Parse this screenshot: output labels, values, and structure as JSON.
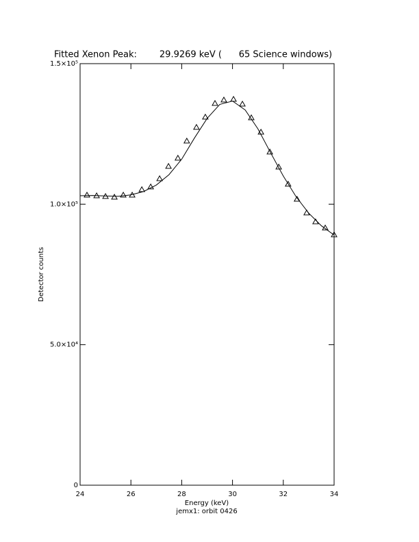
{
  "chart_data": {
    "type": "scatter",
    "title": "Fitted Xenon Peak:        29.9269 keV (      65 Science windows)",
    "x_label": "Energy (keV)",
    "subtitle": "jemx1: orbit 0426",
    "y_label": "Detector counts",
    "xlim": [
      24,
      34
    ],
    "xticks": [
      24,
      26,
      28,
      30,
      32,
      34
    ],
    "ylim": [
      0,
      150000
    ],
    "yticks": [
      {
        "value": 0,
        "label": "0"
      },
      {
        "value": 50000,
        "label": "5.0×10⁴"
      },
      {
        "value": 100000,
        "label": "1.0×10⁵"
      },
      {
        "value": 150000,
        "label": "1.5×10⁵"
      }
    ],
    "color": "#000000",
    "series": [
      {
        "marker": "triangle",
        "x": [
          24.27,
          24.65,
          25.0,
          25.35,
          25.7,
          26.05,
          26.43,
          26.78,
          27.13,
          27.48,
          27.85,
          28.2,
          28.58,
          28.93,
          29.31,
          29.66,
          30.04,
          30.39,
          30.74,
          31.12,
          31.47,
          31.82,
          32.19,
          32.54,
          32.92,
          33.27,
          33.65,
          34.0
        ],
        "values": [
          103250,
          103000,
          102760,
          102510,
          103250,
          103250,
          105190,
          106170,
          109090,
          113470,
          116390,
          122480,
          127350,
          131000,
          135870,
          137090,
          137330,
          135630,
          130760,
          125650,
          118580,
          113230,
          107140,
          101780,
          96910,
          93750,
          91560,
          89120
        ]
      },
      {
        "marker": "line",
        "x": [
          24,
          24.5,
          25,
          25.5,
          26,
          26.5,
          27,
          27.5,
          28,
          28.5,
          29,
          29.5,
          30,
          30.5,
          31,
          31.5,
          32,
          32.5,
          33,
          33.5,
          34
        ],
        "values": [
          103000,
          103100,
          102900,
          102800,
          103300,
          104500,
          106800,
          110500,
          116000,
          123500,
          130500,
          135500,
          136700,
          133500,
          126800,
          118300,
          110000,
          102700,
          96800,
          92300,
          89000
        ]
      }
    ]
  }
}
